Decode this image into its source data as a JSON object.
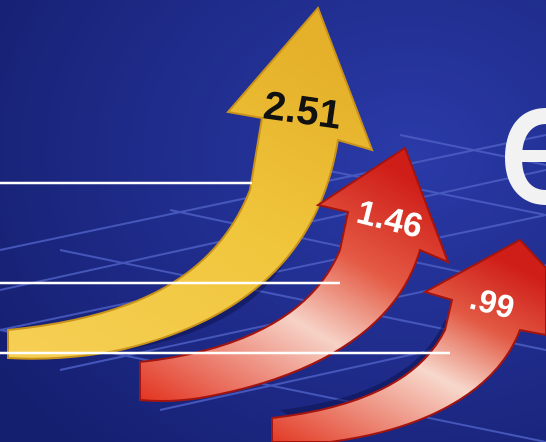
{
  "arrows": [
    {
      "label": "2.51",
      "color": "#f2c23a"
    },
    {
      "label": "1.46",
      "color": "#d8261e"
    },
    {
      "label": ".99",
      "color": "#d8261e"
    }
  ],
  "colors": {
    "background": "#1b2a86",
    "grid_line": "#4d5fc4",
    "guide_line": "#ffffff",
    "partial_glyph": "#f2f2f2"
  }
}
